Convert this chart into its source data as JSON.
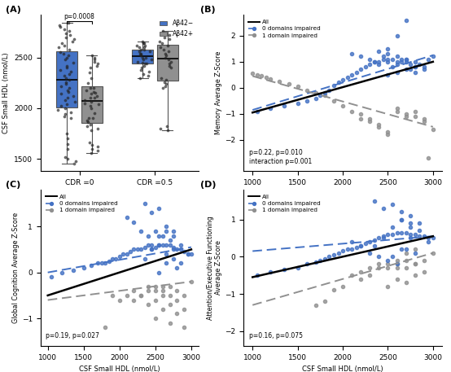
{
  "panel_A": {
    "title": "(A)",
    "ylabel": "CSF Small HDL (nmol/L)",
    "groups": [
      "CDR =0",
      "CDR =0.5"
    ],
    "p_value": "p=0.0008",
    "ylim": [
      1380,
      2920
    ],
    "yticks": [
      1500,
      2000,
      2500
    ],
    "blue_color": "#4472C4",
    "gray_color": "#909090",
    "cdr0_blue_data": [
      2450,
      2480,
      2500,
      2520,
      2540,
      2420,
      2400,
      2380,
      2360,
      2340,
      2320,
      2300,
      2280,
      2260,
      2240,
      2220,
      2200,
      2180,
      2160,
      2140,
      2120,
      2100,
      2080,
      2060,
      2040,
      2020,
      2000,
      1980,
      1960,
      1940,
      1920,
      1900,
      2550,
      2580,
      2600,
      2620,
      2640,
      2660,
      2680,
      2700,
      2720,
      2740,
      2760,
      2780,
      2800,
      2820,
      2840,
      1480,
      1500,
      1520,
      1450,
      1600,
      1650,
      1700,
      1750
    ],
    "cdr0_gray_data": [
      2200,
      2180,
      2160,
      2140,
      2120,
      2100,
      2080,
      2060,
      2040,
      2020,
      1900,
      1880,
      1860,
      1840,
      1820,
      1800,
      1780,
      1600,
      1620,
      1580,
      1560,
      1900,
      1950,
      2000,
      2050,
      2100,
      2150,
      2200,
      2250,
      2300,
      2350,
      2400,
      2420,
      2440,
      2460,
      2480,
      2500,
      2520,
      1640,
      1660
    ],
    "cdr05_blue_data": [
      2450,
      2480,
      2500,
      2520,
      2540,
      2560,
      2580,
      2600,
      2620,
      2640,
      2300,
      2320,
      2340,
      2360,
      2380,
      2400,
      2420,
      2440,
      2440,
      2460,
      2480,
      2500,
      2520,
      2540,
      2560,
      2580,
      2600,
      2620,
      2640,
      2660
    ],
    "cdr05_gray_data": [
      2400,
      2420,
      2440,
      2460,
      2480,
      2500,
      2520,
      2540,
      2560,
      2580,
      2600,
      2620,
      2640,
      2660,
      2680,
      2700,
      2720,
      2740,
      2760,
      2200,
      2220,
      2240,
      2260,
      2280,
      2300,
      1780,
      1800,
      1820
    ]
  },
  "panel_BCD": {
    "xlabel": "CSF Small HDL (nmol/L)",
    "xlim": [
      900,
      3100
    ],
    "xticks": [
      1000,
      1500,
      2000,
      2500,
      3000
    ],
    "blue_color": "#4472C4",
    "gray_color": "#909090"
  },
  "panel_B": {
    "title": "(B)",
    "ylabel": "Memory Average Z-Score",
    "ylim": [
      -3.2,
      2.8
    ],
    "yticks": [
      -2,
      -1,
      0,
      1,
      2
    ],
    "annotation": "p=0.22, p=0.010\ninteraction p=0.001",
    "blue_x": [
      1050,
      1200,
      1350,
      1500,
      1600,
      1700,
      1750,
      1800,
      1850,
      1900,
      1950,
      2000,
      2050,
      2100,
      2150,
      2200,
      2250,
      2300,
      2350,
      2400,
      2450,
      2500,
      2550,
      2600,
      2650,
      2700,
      2750,
      2800,
      2850,
      2900,
      2950,
      3000,
      2100,
      2200,
      2300,
      2350,
      2400,
      2450,
      2500,
      2550,
      2600,
      2650,
      2700,
      2750,
      2800,
      2400,
      2500,
      2600,
      2700,
      2800,
      2900,
      2500,
      2600,
      2700,
      2800,
      2500,
      2600,
      2700
    ],
    "blue_y": [
      -0.9,
      -0.8,
      -0.7,
      -0.6,
      -0.5,
      -0.4,
      -0.3,
      -0.2,
      -0.1,
      0.1,
      0.2,
      0.3,
      0.4,
      0.5,
      0.6,
      0.7,
      0.8,
      0.9,
      1.0,
      1.0,
      1.1,
      1.0,
      1.1,
      1.0,
      1.1,
      1.0,
      0.9,
      1.0,
      0.9,
      0.8,
      1.1,
      1.2,
      1.3,
      1.2,
      1.1,
      1.0,
      0.9,
      1.2,
      1.1,
      0.8,
      0.9,
      1.0,
      1.1,
      0.7,
      0.8,
      1.4,
      1.3,
      1.2,
      1.1,
      0.6,
      0.7,
      0.5,
      0.6,
      0.7,
      0.8,
      1.5,
      2.0,
      2.6
    ],
    "gray_x": [
      1000,
      1050,
      1100,
      1150,
      1200,
      1300,
      1400,
      1500,
      1600,
      1700,
      1800,
      1900,
      2000,
      2100,
      2200,
      2300,
      2400,
      2500,
      2600,
      2700,
      2800,
      2900,
      2950,
      3000,
      2200,
      2300,
      2400,
      2500,
      2600,
      2700,
      2800,
      2900
    ],
    "gray_y": [
      0.55,
      0.5,
      0.45,
      0.4,
      0.35,
      0.25,
      0.15,
      0.05,
      -0.1,
      -0.2,
      -0.3,
      -0.5,
      -0.7,
      -0.9,
      -1.0,
      -1.2,
      -1.4,
      -1.8,
      -0.8,
      -1.0,
      -1.1,
      -1.3,
      -2.7,
      -1.6,
      -1.2,
      -1.3,
      -1.5,
      -1.7,
      -0.9,
      -1.1,
      -0.9,
      -1.2
    ],
    "all_line": {
      "x0": 1000,
      "x1": 3000,
      "y0": -0.95,
      "y1": 1.0
    },
    "blue_line": {
      "x0": 1000,
      "x1": 3000,
      "y0": -0.85,
      "y1": 1.25
    },
    "gray_line": {
      "x0": 1000,
      "x1": 3000,
      "y0": 0.45,
      "y1": -1.5
    }
  },
  "panel_C": {
    "title": "(C)",
    "ylabel": "Global Cognition Average Z-Score",
    "ylim": [
      -1.6,
      1.8
    ],
    "yticks": [
      -1,
      0,
      1
    ],
    "annotation": "p=0.19, p=0.027",
    "blue_x": [
      1050,
      1200,
      1350,
      1500,
      1600,
      1700,
      1750,
      1800,
      1850,
      1900,
      1950,
      2000,
      2050,
      2100,
      2150,
      2200,
      2250,
      2300,
      2350,
      2400,
      2450,
      2500,
      2550,
      2600,
      2650,
      2700,
      2750,
      2800,
      2850,
      2900,
      2950,
      3000,
      2100,
      2200,
      2300,
      2400,
      2500,
      2600,
      2700,
      2800,
      2350,
      2450,
      2550,
      2650,
      2750,
      2350,
      2450,
      2550,
      2650,
      2750,
      2850,
      2950,
      2550,
      2650,
      2750,
      2450,
      2550,
      2650,
      2750,
      2850
    ],
    "blue_y": [
      -0.1,
      0.0,
      0.05,
      0.1,
      0.15,
      0.2,
      0.2,
      0.2,
      0.25,
      0.3,
      0.3,
      0.35,
      0.4,
      0.4,
      0.45,
      0.5,
      0.5,
      0.5,
      0.55,
      0.6,
      0.6,
      0.55,
      0.6,
      0.6,
      0.6,
      0.6,
      0.55,
      0.5,
      0.5,
      0.45,
      0.4,
      0.4,
      1.2,
      1.1,
      0.9,
      0.8,
      0.9,
      0.8,
      0.7,
      0.1,
      1.5,
      1.3,
      1.4,
      1.0,
      0.9,
      0.3,
      0.5,
      0.0,
      0.2,
      0.5,
      0.6,
      0.4,
      0.8,
      0.9,
      0.8,
      0.5,
      0.6,
      0.4,
      0.3,
      0.2
    ],
    "gray_x": [
      1800,
      1900,
      2000,
      2100,
      2200,
      2300,
      2400,
      2500,
      2600,
      2700,
      2800,
      2900,
      3000,
      2200,
      2300,
      2400,
      2500,
      2600,
      2700,
      2500,
      2600,
      2700,
      2800,
      2900,
      2400,
      2500,
      2600,
      2700,
      2800,
      2900
    ],
    "gray_y": [
      -1.2,
      -0.5,
      -0.6,
      -0.5,
      -0.4,
      -0.5,
      -0.4,
      -0.3,
      -0.4,
      -0.3,
      -0.4,
      -0.5,
      -0.2,
      -0.6,
      -0.5,
      -0.3,
      -0.4,
      -0.3,
      -0.5,
      -1.0,
      -0.8,
      -1.1,
      -0.9,
      -1.2,
      -0.7,
      -0.6,
      -0.5,
      -0.7,
      -0.6,
      -0.8
    ],
    "all_line": {
      "x0": 1000,
      "x1": 3000,
      "y0": -0.5,
      "y1": 0.5
    },
    "blue_line": {
      "x0": 1000,
      "x1": 3000,
      "y0": 0.0,
      "y1": 0.55
    },
    "gray_line": {
      "x0": 1000,
      "x1": 3000,
      "y0": -0.6,
      "y1": -0.2
    }
  },
  "panel_D": {
    "title": "(D)",
    "ylabel": "Attention/Executive Functioning\nAverage Z-Score",
    "ylim": [
      -2.4,
      1.8
    ],
    "yticks": [
      -2,
      -1,
      0,
      1
    ],
    "annotation": "p=0.16, p=0.075",
    "blue_x": [
      1050,
      1200,
      1350,
      1500,
      1600,
      1700,
      1750,
      1800,
      1850,
      1900,
      1950,
      2000,
      2050,
      2100,
      2150,
      2200,
      2250,
      2300,
      2350,
      2400,
      2450,
      2500,
      2550,
      2600,
      2650,
      2700,
      2750,
      2800,
      2850,
      2900,
      2950,
      3000,
      2100,
      2200,
      2300,
      2400,
      2500,
      2600,
      2700,
      2800,
      2350,
      2450,
      2550,
      2650,
      2750,
      2350,
      2450,
      2550,
      2650,
      2750,
      2850,
      2950,
      2550,
      2650,
      2750,
      2650,
      2750,
      2850
    ],
    "blue_y": [
      -0.5,
      -0.4,
      -0.35,
      -0.3,
      -0.2,
      -0.15,
      -0.1,
      -0.05,
      0.0,
      0.05,
      0.1,
      0.15,
      0.2,
      0.2,
      0.25,
      0.3,
      0.35,
      0.4,
      0.45,
      0.5,
      0.55,
      0.6,
      0.6,
      0.65,
      0.65,
      0.65,
      0.6,
      0.6,
      0.55,
      0.55,
      0.5,
      0.5,
      0.4,
      0.3,
      0.1,
      0.0,
      -0.1,
      -0.2,
      0.2,
      0.1,
      1.5,
      1.3,
      1.4,
      1.0,
      0.9,
      0.3,
      0.5,
      0.0,
      0.2,
      0.5,
      0.7,
      0.4,
      0.8,
      1.0,
      0.8,
      1.2,
      1.1,
      0.9
    ],
    "gray_x": [
      1700,
      1800,
      1900,
      2000,
      2100,
      2200,
      2300,
      2400,
      2500,
      2600,
      2700,
      2800,
      2900,
      3000,
      2200,
      2300,
      2400,
      2500,
      2600,
      2700,
      2800,
      2500,
      2600,
      2700,
      2800,
      2900,
      2600,
      2700,
      2800
    ],
    "gray_y": [
      -1.3,
      -1.2,
      -0.9,
      -0.8,
      -0.5,
      -0.4,
      -0.3,
      -0.2,
      -0.3,
      -0.2,
      -0.1,
      -0.2,
      -0.1,
      0.1,
      -0.6,
      -0.5,
      -0.3,
      -0.2,
      -0.1,
      -0.3,
      -0.2,
      -0.8,
      -0.6,
      -0.7,
      -0.5,
      -0.4,
      -0.3,
      0.1,
      0.2
    ],
    "all_line": {
      "x0": 1000,
      "x1": 3000,
      "y0": -0.55,
      "y1": 0.55
    },
    "blue_line": {
      "x0": 1000,
      "x1": 3000,
      "y0": 0.15,
      "y1": 0.55
    },
    "gray_line": {
      "x0": 1000,
      "x1": 3000,
      "y0": -1.3,
      "y1": 0.1
    }
  }
}
